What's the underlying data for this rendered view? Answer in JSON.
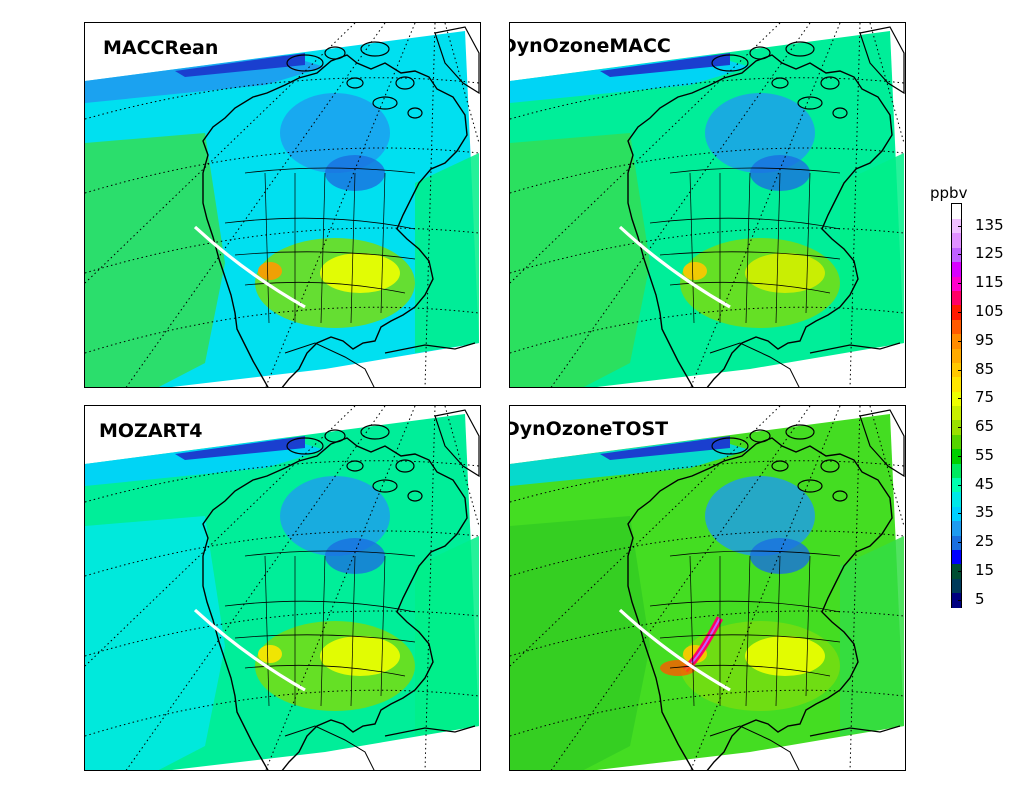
{
  "panels": [
    {
      "title": "MACCRean",
      "variant": "maccrean"
    },
    {
      "title": "DynOzoneMACC",
      "variant": "dynmacc"
    },
    {
      "title": "MOZART4",
      "variant": "mozart"
    },
    {
      "title": "DynOzoneTOST",
      "variant": "dyntost"
    }
  ],
  "colorbar": {
    "unit": "ppbv",
    "tick_labels": [
      "5",
      "15",
      "25",
      "35",
      "45",
      "55",
      "65",
      "75",
      "85",
      "95",
      "105",
      "115",
      "125",
      "135"
    ],
    "levels": [
      5,
      10,
      15,
      20,
      25,
      30,
      35,
      40,
      45,
      50,
      55,
      60,
      65,
      70,
      75,
      80,
      85,
      90,
      95,
      100,
      105,
      110,
      115,
      120,
      125,
      130,
      135,
      140
    ],
    "colors": [
      "#000080",
      "#003a5a",
      "#004d33",
      "#0000ff",
      "#1a6fe0",
      "#1e9bf0",
      "#00d0ff",
      "#00e8e8",
      "#00ffb0",
      "#00ea60",
      "#00d000",
      "#55d400",
      "#99e000",
      "#c8f000",
      "#eeff00",
      "#ffe600",
      "#ffc800",
      "#ffaa00",
      "#ff8c00",
      "#ff5a00",
      "#ff1a00",
      "#ff0066",
      "#ff00cc",
      "#d800ff",
      "#c060ff",
      "#e090ff",
      "#f0c0ff",
      "#ffffff"
    ]
  }
}
